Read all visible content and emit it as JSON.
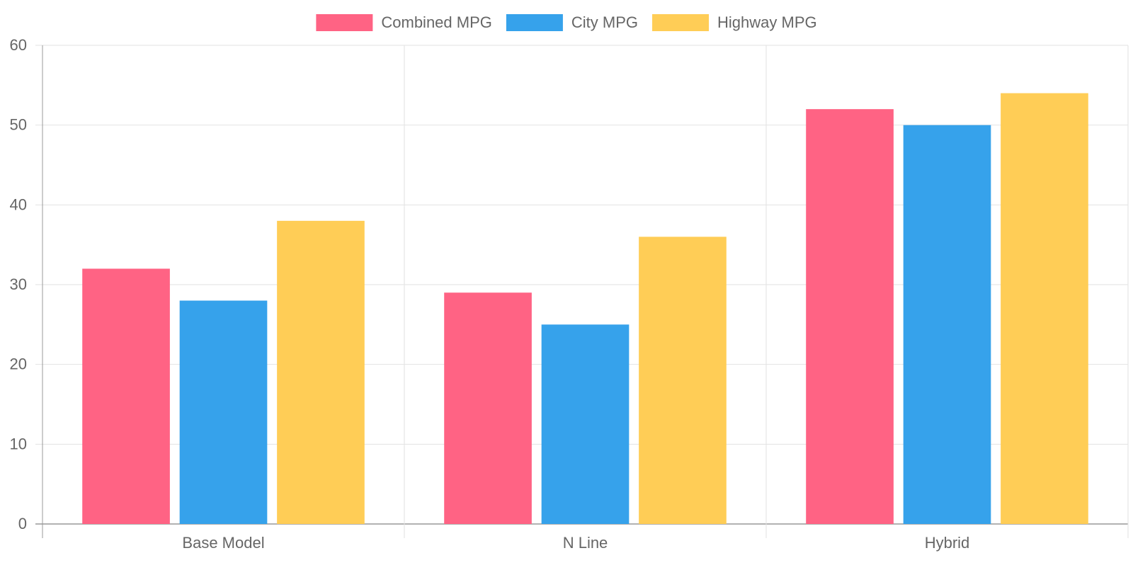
{
  "chart_data": {
    "type": "bar",
    "title": "",
    "xlabel": "",
    "ylabel": "",
    "categories": [
      "Base Model",
      "N Line",
      "Hybrid"
    ],
    "series": [
      {
        "name": "Combined MPG",
        "values": [
          32,
          29,
          52
        ],
        "color": "#ff6384"
      },
      {
        "name": "City MPG",
        "values": [
          28,
          25,
          50
        ],
        "color": "#36a2eb"
      },
      {
        "name": "Highway MPG",
        "values": [
          38,
          36,
          54
        ],
        "color": "#ffcd56"
      }
    ],
    "ylim": [
      0,
      60
    ],
    "yticks": [
      0,
      10,
      20,
      30,
      40,
      50,
      60
    ],
    "grid": true,
    "legend_position": "top"
  }
}
